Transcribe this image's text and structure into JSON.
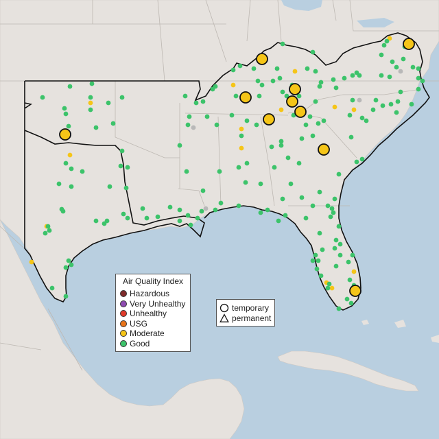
{
  "legend": {
    "title": "Air Quality Index",
    "categories": [
      {
        "label": "Hazardous",
        "color": "#7e2a2a"
      },
      {
        "label": "Very Unhealthy",
        "color": "#8e4bb0"
      },
      {
        "label": "Unhealthy",
        "color": "#e03a2a"
      },
      {
        "label": "USG",
        "color": "#e8741a"
      },
      {
        "label": "Moderate",
        "color": "#f5c518"
      },
      {
        "label": "Good",
        "color": "#3cc36a"
      }
    ]
  },
  "shape_legend": {
    "items": [
      {
        "label": "temporary",
        "shape": "circle-icon"
      },
      {
        "label": "permanent",
        "shape": "triangle-icon"
      }
    ]
  },
  "colors": {
    "water": "#b9cfe0",
    "land": "#e6e2de",
    "no_data": "#b8b8b8"
  }
}
